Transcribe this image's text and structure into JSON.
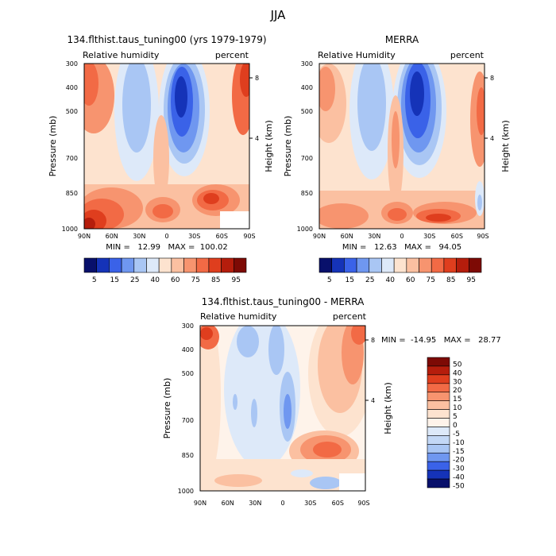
{
  "figure": {
    "title": "JJA"
  },
  "chart_data": [
    {
      "type": "heatmap",
      "title": "134.flthist.taus_tuning00 (yrs 1979-1979)",
      "subtitle_left": "Relative humidity",
      "subtitle_right": "percent",
      "ylabel": "Pressure (mb)",
      "ylabel_right": "Height (km)",
      "x_ticks": [
        "90N",
        "60N",
        "30N",
        "0",
        "30S",
        "60S",
        "90S"
      ],
      "y_ticks": [
        300,
        400,
        500,
        700,
        850,
        1000
      ],
      "y_ticks_right": [
        8,
        4
      ],
      "ylim": [
        1000,
        300
      ],
      "stats": {
        "min": "12.99",
        "max": "100.02"
      },
      "stats_text": "MIN =   12.99   MAX =  100.02",
      "colorbar_labels": [
        "5",
        "15",
        "25",
        "40",
        "60",
        "75",
        "85",
        "95"
      ]
    },
    {
      "type": "heatmap",
      "title": "MERRA",
      "subtitle_left": "Relative Humidity",
      "subtitle_right": "percent",
      "ylabel": "Pressure (mb)",
      "ylabel_right": "Height (km)",
      "x_ticks": [
        "90N",
        "60N",
        "30N",
        "0",
        "30S",
        "60S",
        "90S"
      ],
      "y_ticks": [
        300,
        400,
        500,
        700,
        850,
        1000
      ],
      "y_ticks_right": [
        8,
        4
      ],
      "ylim": [
        1000,
        300
      ],
      "stats": {
        "min": "12.63",
        "max": "94.05"
      },
      "stats_text": "MIN =   12.63   MAX =   94.05",
      "colorbar_labels": [
        "5",
        "15",
        "25",
        "40",
        "60",
        "75",
        "85",
        "95"
      ]
    },
    {
      "type": "heatmap",
      "title": "134.flthist.taus_tuning00 - MERRA",
      "subtitle_left": "Relative humidity",
      "subtitle_right": "percent",
      "ylabel": "Pressure (mb)",
      "ylabel_right": "Height (km)",
      "x_ticks": [
        "90N",
        "60N",
        "30N",
        "0",
        "30S",
        "60S",
        "90S"
      ],
      "y_ticks": [
        300,
        400,
        500,
        700,
        850,
        1000
      ],
      "y_ticks_right": [
        8,
        4
      ],
      "ylim": [
        1000,
        300
      ],
      "stats": {
        "min": "-14.95",
        "max": "28.77"
      },
      "stats_text": "MIN =  -14.95   MAX =   28.77",
      "colorbar_labels": [
        "50",
        "40",
        "30",
        "20",
        "15",
        "10",
        "5",
        "0",
        "-5",
        "-10",
        "-15",
        "-20",
        "-30",
        "-40",
        "-50"
      ]
    }
  ],
  "colors": {
    "abs_scale": [
      "#08106b",
      "#1533b8",
      "#3a62e8",
      "#6f97f0",
      "#a9c6f4",
      "#dde9f9",
      "#fde3cf",
      "#fbc0a1",
      "#f7946f",
      "#f26a45",
      "#df3e1e",
      "#b51d0c",
      "#7d0a05"
    ],
    "diff_scale": [
      "#7d0a05",
      "#b51d0c",
      "#df3e1e",
      "#f26a45",
      "#f7946f",
      "#fbc0a1",
      "#fde3cf",
      "#fef3ea",
      "#dde9f9",
      "#c3d8f6",
      "#a9c6f4",
      "#6f97f0",
      "#3a62e8",
      "#1533b8",
      "#08106b"
    ]
  }
}
